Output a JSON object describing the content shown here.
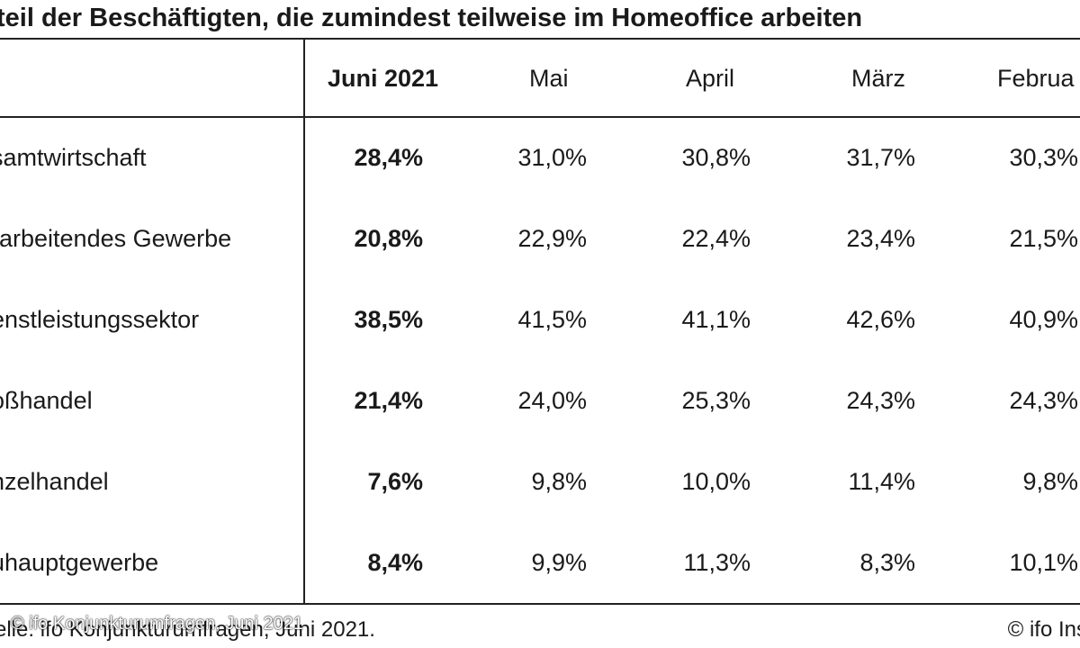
{
  "chart_data": {
    "type": "table",
    "title": "teil der Beschäftigten, die zumindest teilweise im Homeoffice arbeiten",
    "columns": [
      "Juni 2021",
      "Mai",
      "April",
      "März",
      "Februa"
    ],
    "rows": [
      {
        "label": "samtwirtschaft",
        "values": [
          "28,4%",
          "31,0%",
          "30,8%",
          "31,7%",
          "30,3%"
        ]
      },
      {
        "label": "rarbeitendes Gewerbe",
        "values": [
          "20,8%",
          "22,9%",
          "22,4%",
          "23,4%",
          "21,5%"
        ]
      },
      {
        "label": "enstleistungssektor",
        "values": [
          "38,5%",
          "41,5%",
          "41,1%",
          "42,6%",
          "40,9%"
        ]
      },
      {
        "label": "oßhandel",
        "values": [
          "21,4%",
          "24,0%",
          "25,3%",
          "24,3%",
          "24,3%"
        ]
      },
      {
        "label": "nzelhandel",
        "values": [
          "7,6%",
          "9,8%",
          "10,0%",
          "11,4%",
          "9,8%"
        ]
      },
      {
        "label": "uhauptgewerbe",
        "values": [
          "8,4%",
          "9,9%",
          "11,3%",
          "8,3%",
          "10,1%"
        ]
      }
    ]
  },
  "footer": {
    "source": "elle: ifo Konjunkturumfragen, Juni 2021.",
    "watermark": "© ifo Konjunkturumfragen, Juni 2021",
    "copyright": "© ifo Ins"
  }
}
